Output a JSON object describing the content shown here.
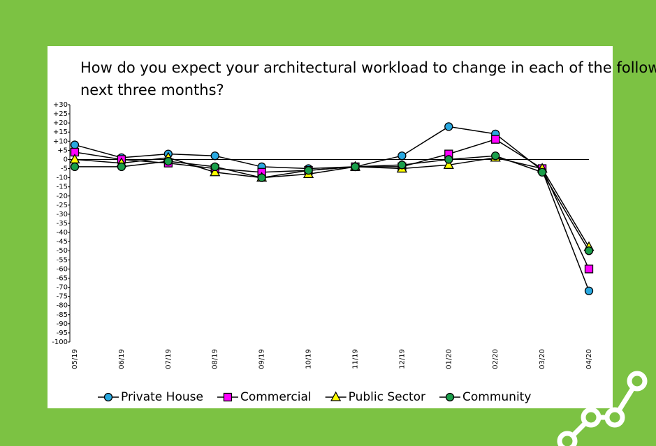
{
  "chart_data": {
    "type": "line",
    "title": "How do you expect your architectural workload to change in each of the following sectors over the next three months?",
    "categories": [
      "05/19",
      "06/19",
      "07/19",
      "08/19",
      "09/19",
      "10/19",
      "11/19",
      "12/19",
      "01/20",
      "02/20",
      "03/20",
      "04/20"
    ],
    "series": [
      {
        "name": "Private House",
        "color": "#29a8e0",
        "marker": "circle",
        "values": [
          8,
          1,
          3,
          2,
          -4,
          -5,
          -4,
          2,
          18,
          14,
          -6,
          -72
        ]
      },
      {
        "name": "Commercial",
        "color": "#ff00ff",
        "marker": "square",
        "values": [
          4,
          0,
          -2,
          -5,
          -7,
          -6,
          -4,
          -4,
          3,
          11,
          -5,
          -60
        ]
      },
      {
        "name": "Public Sector",
        "color": "#ffff00",
        "marker": "triangle",
        "values": [
          0,
          -2,
          1,
          -7,
          -10,
          -8,
          -4,
          -5,
          -3,
          1,
          -5,
          -48
        ]
      },
      {
        "name": "Community",
        "color": "#1a9e4a",
        "marker": "circle",
        "values": [
          -4,
          -4,
          -1,
          -4,
          -10,
          -6,
          -4,
          -3,
          0,
          2,
          -7,
          -50
        ]
      }
    ],
    "ylim": [
      -100,
      30
    ],
    "yticks": [
      {
        "value": 30,
        "label": "+30"
      },
      {
        "value": 25,
        "label": "+25"
      },
      {
        "value": 20,
        "label": "+20"
      },
      {
        "value": 15,
        "label": "+15"
      },
      {
        "value": 10,
        "label": "+10"
      },
      {
        "value": 5,
        "label": "+5"
      },
      0,
      -5,
      -10,
      -15,
      -20,
      -25,
      -30,
      -35,
      -40,
      -45,
      -50,
      -55,
      -60,
      -65,
      -70,
      -75,
      -80,
      -85,
      -90,
      -95,
      -100
    ],
    "legend": "bottom"
  }
}
